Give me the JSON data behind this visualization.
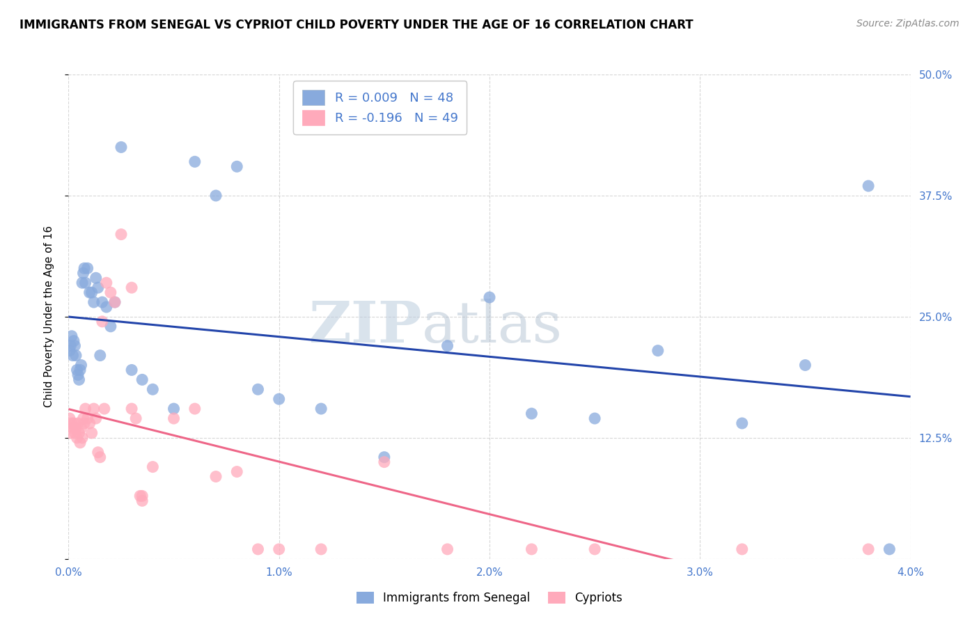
{
  "title": "IMMIGRANTS FROM SENEGAL VS CYPRIOT CHILD POVERTY UNDER THE AGE OF 16 CORRELATION CHART",
  "source": "Source: ZipAtlas.com",
  "ylabel": "Child Poverty Under the Age of 16",
  "xlim": [
    0.0,
    0.04
  ],
  "ylim": [
    0.0,
    0.5
  ],
  "xticks": [
    0.0,
    0.01,
    0.02,
    0.03,
    0.04
  ],
  "xtick_labels": [
    "0.0%",
    "1.0%",
    "2.0%",
    "3.0%",
    "4.0%"
  ],
  "yticks": [
    0.0,
    0.125,
    0.25,
    0.375,
    0.5
  ],
  "ytick_labels": [
    "",
    "12.5%",
    "25.0%",
    "37.5%",
    "50.0%"
  ],
  "blue_color": "#88AADD",
  "pink_color": "#FFAABB",
  "blue_line_color": "#2244AA",
  "pink_line_color": "#EE6688",
  "accent_color": "#4477CC",
  "R_blue": 0.009,
  "N_blue": 48,
  "R_pink": -0.196,
  "N_pink": 49,
  "legend_label_blue": "Immigrants from Senegal",
  "legend_label_pink": "Cypriots",
  "watermark_zip": "ZIP",
  "watermark_atlas": "atlas",
  "blue_scatter_x": [
    5e-05,
    0.0001,
    0.00015,
    0.0002,
    0.00025,
    0.0003,
    0.00035,
    0.0004,
    0.00045,
    0.0005,
    0.00055,
    0.0006,
    0.00065,
    0.0007,
    0.00075,
    0.0008,
    0.0009,
    0.001,
    0.0011,
    0.0012,
    0.0013,
    0.0014,
    0.0015,
    0.0016,
    0.0018,
    0.002,
    0.0022,
    0.0025,
    0.003,
    0.0035,
    0.004,
    0.005,
    0.006,
    0.007,
    0.008,
    0.009,
    0.01,
    0.012,
    0.015,
    0.018,
    0.02,
    0.022,
    0.025,
    0.028,
    0.032,
    0.035,
    0.038,
    0.039
  ],
  "blue_scatter_y": [
    0.215,
    0.22,
    0.23,
    0.21,
    0.225,
    0.22,
    0.21,
    0.195,
    0.19,
    0.185,
    0.195,
    0.2,
    0.285,
    0.295,
    0.3,
    0.285,
    0.3,
    0.275,
    0.275,
    0.265,
    0.29,
    0.28,
    0.21,
    0.265,
    0.26,
    0.24,
    0.265,
    0.425,
    0.195,
    0.185,
    0.175,
    0.155,
    0.41,
    0.375,
    0.405,
    0.175,
    0.165,
    0.155,
    0.105,
    0.22,
    0.27,
    0.15,
    0.145,
    0.215,
    0.14,
    0.2,
    0.385,
    0.01
  ],
  "pink_scatter_x": [
    5e-05,
    0.0001,
    0.00015,
    0.0002,
    0.00025,
    0.0003,
    0.00035,
    0.0004,
    0.00045,
    0.0005,
    0.00055,
    0.0006,
    0.00065,
    0.0007,
    0.00075,
    0.0008,
    0.0009,
    0.001,
    0.0011,
    0.0012,
    0.0013,
    0.0014,
    0.0015,
    0.0016,
    0.0017,
    0.0018,
    0.002,
    0.0022,
    0.0025,
    0.003,
    0.003,
    0.0032,
    0.0034,
    0.0035,
    0.0035,
    0.004,
    0.005,
    0.006,
    0.007,
    0.008,
    0.009,
    0.01,
    0.012,
    0.015,
    0.018,
    0.022,
    0.025,
    0.032,
    0.038
  ],
  "pink_scatter_y": [
    0.145,
    0.13,
    0.14,
    0.135,
    0.14,
    0.13,
    0.135,
    0.125,
    0.14,
    0.13,
    0.12,
    0.135,
    0.125,
    0.145,
    0.14,
    0.155,
    0.145,
    0.14,
    0.13,
    0.155,
    0.145,
    0.11,
    0.105,
    0.245,
    0.155,
    0.285,
    0.275,
    0.265,
    0.335,
    0.28,
    0.155,
    0.145,
    0.065,
    0.065,
    0.06,
    0.095,
    0.145,
    0.155,
    0.085,
    0.09,
    0.01,
    0.01,
    0.01,
    0.1,
    0.01,
    0.01,
    0.01,
    0.01,
    0.01
  ]
}
